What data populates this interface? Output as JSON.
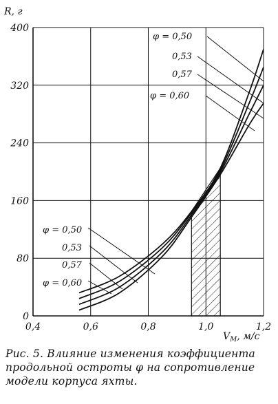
{
  "chart_data": {
    "type": "line",
    "xlabel": "V_M, м/с",
    "ylabel": "R, г",
    "xlim": [
      0.4,
      1.2
    ],
    "ylim": [
      0,
      400
    ],
    "xticks": [
      "0,4",
      "0,6",
      "0,8",
      "1,0",
      "1,2"
    ],
    "yticks": [
      "0",
      "80",
      "160",
      "240",
      "320",
      "400"
    ],
    "grid": true,
    "series": [
      {
        "name": "φ = 0,50",
        "x": [
          0.56,
          0.7,
          0.85,
          0.95,
          1.05,
          1.15,
          1.2
        ],
        "y": [
          32,
          55,
          100,
          145,
          205,
          310,
          370
        ]
      },
      {
        "name": "0,53",
        "x": [
          0.56,
          0.7,
          0.85,
          0.95,
          1.05,
          1.15,
          1.2
        ],
        "y": [
          24,
          48,
          95,
          143,
          202,
          295,
          345
        ]
      },
      {
        "name": "0,57",
        "x": [
          0.56,
          0.7,
          0.85,
          0.95,
          1.05,
          1.15,
          1.2
        ],
        "y": [
          16,
          40,
          89,
          140,
          199,
          280,
          320
        ]
      },
      {
        "name": "0,60",
        "x": [
          0.56,
          0.7,
          0.85,
          0.95,
          1.05,
          1.15,
          1.2
        ],
        "y": [
          8,
          32,
          83,
          137,
          196,
          265,
          295
        ]
      }
    ],
    "shaded_region": {
      "x": [
        0.95,
        1.05
      ]
    },
    "annotations": {
      "upper": [
        "φ = 0,50",
        "0,53",
        "0,57",
        "φ = 0,60"
      ],
      "lower": [
        "φ = 0,50",
        "0,53",
        "0,57",
        "φ = 0,60"
      ]
    },
    "xaxis_label": "V",
    "xaxis_sub": "M",
    "xaxis_unit": ", м/с",
    "yaxis_label": "R, г"
  },
  "caption": "Рис. 5. Влияние изменения коэффициента продольной остроты φ на сопротивление модели корпуса яхты."
}
